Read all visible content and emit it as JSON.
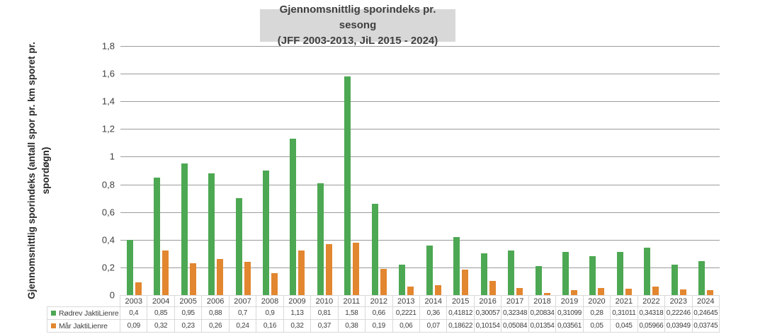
{
  "title": {
    "lines": [
      "Gjennomsnittlig sporindeks pr.  sesong",
      "(JFF 2003-2013, JiL 2015 - 2024)"
    ],
    "background": "#d8d8d8"
  },
  "y_axis": {
    "label": "Gjennomsnittlig sporindeks (antall spor pr. km sporet pr. spordøgn)",
    "label_lines": [
      "Gjennomsnittlig sporindeks (antall spor pr. km sporet pr.",
      "spordøgn)"
    ],
    "ticks": [
      "1,8",
      "1,6",
      "1,4",
      "1,2",
      "1",
      "0,8",
      "0,6",
      "0,4",
      "0,2",
      "0"
    ]
  },
  "colors": {
    "rodrev_green": "#4da853",
    "mar_orange": "#e2862f",
    "gridline": "#9b9b9b",
    "table_border": "#d9d9d9"
  },
  "chart_data": {
    "type": "bar",
    "title": "Gjennomsnittlig sporindeks pr. sesong (JFF 2003-2013, JiL 2015 - 2024)",
    "xlabel": "",
    "ylabel": "Gjennomsnittlig sporindeks (antall spor pr. km sporet pr. spordøgn)",
    "ylim": [
      0,
      1.8
    ],
    "grid": true,
    "legend_position": "data-table-left",
    "categories": [
      "2003",
      "2004",
      "2005",
      "2006",
      "2007",
      "2008",
      "2009",
      "2010",
      "2011",
      "2012",
      "2013",
      "2014",
      "2015",
      "2016",
      "2017",
      "2018",
      "2019",
      "2020",
      "2021",
      "2022",
      "2023",
      "2024"
    ],
    "series": [
      {
        "name": "Rødrev JaktiLienre",
        "color": "#4da853",
        "values": [
          0.4,
          0.85,
          0.95,
          0.88,
          0.7,
          0.9,
          1.13,
          0.81,
          1.58,
          0.66,
          0.2221,
          0.36,
          0.41812,
          0.30057,
          0.32348,
          0.20834,
          0.31099,
          0.28,
          0.31011,
          0.34318,
          0.22246,
          0.24645
        ],
        "display": [
          "0,4",
          "0,85",
          "0,95",
          "0,88",
          "0,7",
          "0,9",
          "1,13",
          "0,81",
          "1,58",
          "0,66",
          "0,2221",
          "0,36",
          "0,41812",
          "0,30057",
          "0,32348",
          "0,20834",
          "0,31099",
          "0,28",
          "0,31011",
          "0,34318",
          "0,22246",
          "0,24645"
        ]
      },
      {
        "name": "Mår JaktiLienre",
        "color": "#e2862f",
        "values": [
          0.09,
          0.32,
          0.23,
          0.26,
          0.24,
          0.16,
          0.32,
          0.37,
          0.38,
          0.19,
          0.06,
          0.07,
          0.18622,
          0.10154,
          0.05084,
          0.01354,
          0.03561,
          0.05,
          0.045,
          0.05966,
          0.03949,
          0.03745
        ],
        "display": [
          "0,09",
          "0,32",
          "0,23",
          "0,26",
          "0,24",
          "0,16",
          "0,32",
          "0,37",
          "0,38",
          "0,19",
          "0,06",
          "0,07",
          "0,18622",
          "0,10154",
          "0,05084",
          "0,01354",
          "0,03561",
          "0,05",
          "0,045",
          "0,05966",
          "0,03949",
          "0,03745"
        ]
      }
    ]
  }
}
